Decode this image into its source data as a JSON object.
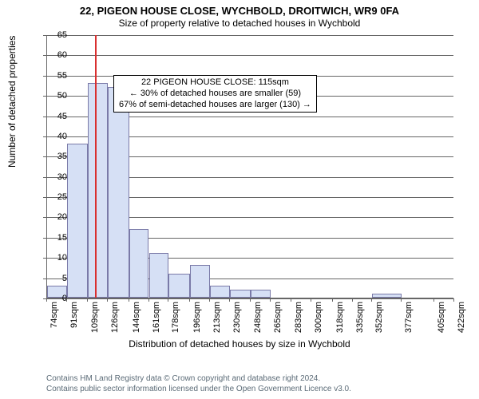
{
  "title_main": "22, PIGEON HOUSE CLOSE, WYCHBOLD, DROITWICH, WR9 0FA",
  "title_sub": "Size of property relative to detached houses in Wychbold",
  "ylabel": "Number of detached properties",
  "xlabel": "Distribution of detached houses by size in Wychbold",
  "footer_line1": "Contains HM Land Registry data © Crown copyright and database right 2024.",
  "footer_line2": "Contains public sector information licensed under the Open Government Licence v3.0.",
  "callout": {
    "line1": "22 PIGEON HOUSE CLOSE: 115sqm",
    "line2": "← 30% of detached houses are smaller (59)",
    "line3": "67% of semi-detached houses are larger (130) →"
  },
  "chart": {
    "type": "histogram",
    "ylim": [
      0,
      65
    ],
    "ytick_step": 5,
    "ylabel_fontsize": 12,
    "xlabel_fontsize": 12,
    "tick_fontsize": 11,
    "title_fontsize": 13,
    "bar_fill": "#d6e0f5",
    "bar_border": "#7a7aa8",
    "grid_color": "#666666",
    "background_color": "#ffffff",
    "refline_color": "#d93030",
    "refline_x": 115,
    "xticks": [
      74,
      91,
      109,
      126,
      144,
      161,
      178,
      196,
      213,
      230,
      248,
      265,
      283,
      300,
      318,
      335,
      352,
      377,
      405,
      422
    ],
    "bars": [
      {
        "x0": 74,
        "x1": 91,
        "h": 3
      },
      {
        "x0": 91,
        "x1": 109,
        "h": 38
      },
      {
        "x0": 109,
        "x1": 126,
        "h": 53
      },
      {
        "x0": 126,
        "x1": 144,
        "h": 52
      },
      {
        "x0": 144,
        "x1": 161,
        "h": 17
      },
      {
        "x0": 161,
        "x1": 178,
        "h": 11
      },
      {
        "x0": 178,
        "x1": 196,
        "h": 6
      },
      {
        "x0": 196,
        "x1": 213,
        "h": 8
      },
      {
        "x0": 213,
        "x1": 230,
        "h": 3
      },
      {
        "x0": 230,
        "x1": 248,
        "h": 2
      },
      {
        "x0": 248,
        "x1": 265,
        "h": 2
      },
      {
        "x0": 352,
        "x1": 377,
        "h": 1
      }
    ]
  }
}
